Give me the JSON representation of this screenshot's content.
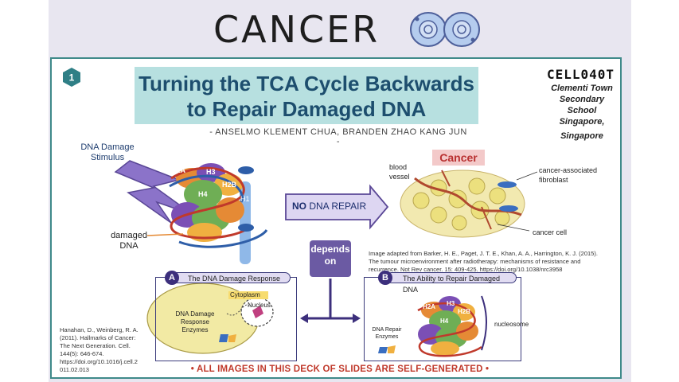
{
  "header": {
    "title": "CANCER",
    "logo_icon": "cell-dividing-icon"
  },
  "slide": {
    "number": "1",
    "title_line1": "Turning the TCA Cycle Backwards",
    "title_line2": "to Repair Damaged DNA",
    "authors": "- ANSELMO KLEMENT CHUA, BRANDEN ZHAO KANG JUN -",
    "team_code": "CELL040T",
    "school_lines": [
      "Clementi Town",
      "Secondary School",
      "Singapore,",
      "Singapore"
    ],
    "labels": {
      "stimulus": [
        "DNA Damage",
        "Stimulus"
      ],
      "damaged_dna": [
        "damaged",
        "DNA"
      ],
      "histones": [
        "H2A",
        "H3",
        "H2B",
        "H4",
        "H1"
      ],
      "no_repair_bold": "NO",
      "no_repair_rest": " DNA REPAIR",
      "depends_on": [
        "depends",
        "on"
      ],
      "cancer": "Cancer",
      "blood_vessel": [
        "blood",
        "vessel"
      ],
      "fibroblast": [
        "cancer-associated",
        "fibroblast"
      ],
      "cancer_cell": "cancer cell"
    },
    "citation_barker": [
      "Image adapted from Barker, H. E., Paget, J. T. E., Khan, A. A., Harrington, K. J. (2015).",
      "The tumour microenvironment after radiotherapy: mechanisms of resistance and",
      "recurrence. Not Rev cancer. 15: 409-425. https://doi.org/10.1038/nrc3958"
    ],
    "panel_a": {
      "letter": "A",
      "title": "The DNA Damage Response",
      "cytoplasm": "Cytoplasm",
      "nucleus": "Nucleus",
      "enzymes": [
        "DNA Damage",
        "Response",
        "Enzymes"
      ]
    },
    "panel_b": {
      "letter": "B",
      "title": "The Ability to Repair Damaged DNA",
      "nucleosome": "nucleosome",
      "histones": [
        "H2A",
        "H3",
        "H4",
        "H2B"
      ],
      "repair_enzymes": [
        "DNA Repair",
        "Enzymes"
      ]
    },
    "citation_hanahan": [
      "Hanahan, D., Weinberg, R. A.",
      "(2011). Hallmarks of Cancer:",
      "The Next Generation. Cell.",
      "144(5): 646-674.",
      "https://doi.org/10.1016/j.cell.2",
      "011.02.013"
    ],
    "footer": "• ALL IMAGES IN THIS DECK OF SLIDES ARE SELF-GENERATED •"
  },
  "colors": {
    "teal_border": "#3f8a8a",
    "title_bg": "#b7e0e0",
    "title_text": "#1d4e6e",
    "purple": "#6b5aa3",
    "cancer_red": "#b83030",
    "footer_red": "#c0392b"
  }
}
